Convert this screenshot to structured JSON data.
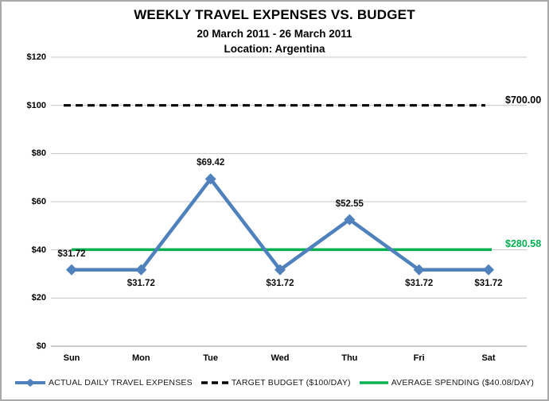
{
  "header": {
    "title": "WEEKLY TRAVEL EXPENSES VS. BUDGET",
    "subtitle": "20 March 2011 - 26 March 2011",
    "location": "Location: Argentina"
  },
  "chart_data": {
    "type": "line",
    "title": "WEEKLY TRAVEL EXPENSES VS. BUDGET",
    "subtitle": "20 March 2011 - 26 March 2011",
    "location": "Location: Argentina",
    "categories": [
      "Sun",
      "Mon",
      "Tue",
      "Wed",
      "Thu",
      "Fri",
      "Sat"
    ],
    "series": [
      {
        "name": "ACTUAL DAILY TRAVEL EXPENSES",
        "values": [
          31.72,
          31.72,
          69.42,
          31.72,
          52.55,
          31.72,
          31.72
        ],
        "color": "#4f81bd",
        "marker": "diamond",
        "data_labels": [
          "$31.72",
          "$31.72",
          "$69.42",
          "$31.72",
          "$52.55",
          "$31.72",
          "$31.72"
        ],
        "label_positions": [
          "above",
          "below",
          "above",
          "below",
          "above",
          "below",
          "below"
        ]
      }
    ],
    "target_line": {
      "name": "TARGET BUDGET ($100/DAY)",
      "value": 100,
      "annotation": "$700.00",
      "color": "#000000",
      "style": "dashed"
    },
    "average_line": {
      "name": "AVERAGE SPENDING ($40.08/DAY)",
      "value": 40.08,
      "annotation": "$280.58",
      "color": "#00b050",
      "style": "solid"
    },
    "ylim": [
      0,
      120
    ],
    "y_tick_step": 20,
    "y_tick_labels": [
      "$0",
      "$20",
      "$40",
      "$60",
      "$80",
      "$100",
      "$120"
    ],
    "grid": true,
    "legend_position": "bottom"
  },
  "legend": {
    "items": [
      {
        "label": "ACTUAL DAILY TRAVEL EXPENSES",
        "swatch": "blue-line-diamond",
        "color": "#4f81bd"
      },
      {
        "label": "TARGET BUDGET ($100/DAY)",
        "swatch": "black-dashed-line",
        "color": "#000000"
      },
      {
        "label": "AVERAGE SPENDING ($40.08/DAY)",
        "swatch": "green-line",
        "color": "#00b050"
      }
    ]
  },
  "colors": {
    "series_blue": "#4f81bd",
    "average_green": "#00b050",
    "target_black": "#000000",
    "gridline": "#c6c6c6",
    "axis_line": "#9a9a9a",
    "border": "#a9a9a9"
  }
}
